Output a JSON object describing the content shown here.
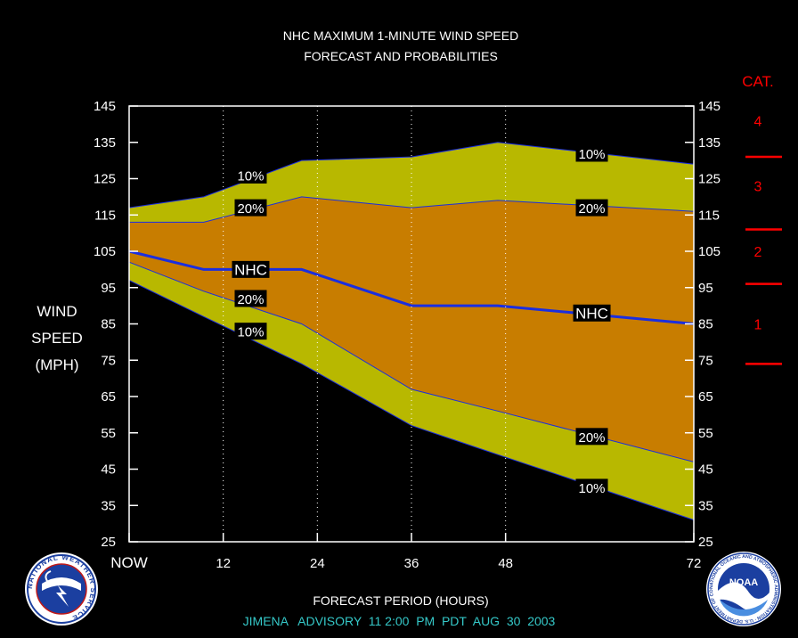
{
  "chart_data": {
    "type": "area",
    "title": "NHC MAXIMUM 1-MINUTE WIND SPEED",
    "subtitle": "FORECAST AND PROBABILITIES",
    "xlabel": "FORECAST PERIOD (HOURS)",
    "ylabel_lines": [
      "WIND",
      "SPEED",
      "(MPH)"
    ],
    "footer": "JIMENA   ADVISORY  11 2:00  PM  PDT  AUG  30  2003",
    "xlim": [
      0,
      72
    ],
    "ylim": [
      25,
      145
    ],
    "x_ticks": [
      {
        "value": 0,
        "label": "NOW"
      },
      {
        "value": 12,
        "label": "12"
      },
      {
        "value": 24,
        "label": "24"
      },
      {
        "value": 36,
        "label": "36"
      },
      {
        "value": 48,
        "label": "48"
      },
      {
        "value": 72,
        "label": "72"
      }
    ],
    "y_ticks": [
      25,
      35,
      45,
      55,
      65,
      75,
      85,
      95,
      105,
      115,
      125,
      135,
      145
    ],
    "grid": "dotted vertical at 12, 24, 36, 48",
    "series": [
      {
        "name": "10%",
        "role": "upper",
        "x": [
          0,
          9.5,
          22,
          36,
          47,
          72
        ],
        "values": [
          117,
          120,
          130,
          131,
          135,
          129
        ]
      },
      {
        "name": "20%",
        "role": "upper",
        "x": [
          0,
          9.5,
          22,
          36,
          47,
          72
        ],
        "values": [
          113,
          113,
          120,
          117,
          119,
          116
        ]
      },
      {
        "name": "NHC",
        "role": "forecast",
        "x": [
          0,
          9.5,
          22,
          36,
          47,
          72
        ],
        "values": [
          105,
          100,
          100,
          90,
          90,
          85
        ]
      },
      {
        "name": "20%",
        "role": "lower",
        "x": [
          0,
          9.5,
          22,
          36,
          47,
          72
        ],
        "values": [
          102,
          94,
          85,
          67,
          61,
          47
        ]
      },
      {
        "name": "10%",
        "role": "lower",
        "x": [
          0,
          9.5,
          22,
          36,
          47,
          72
        ],
        "values": [
          97,
          87,
          74,
          57,
          49,
          31
        ]
      }
    ],
    "series_labels": [
      {
        "text": "10%",
        "x": 15.5,
        "y": 126
      },
      {
        "text": "20%",
        "x": 15.5,
        "y": 117
      },
      {
        "text": "NHC",
        "x": 15.5,
        "y": 100
      },
      {
        "text": "20%",
        "x": 15.5,
        "y": 92
      },
      {
        "text": "10%",
        "x": 15.5,
        "y": 83
      },
      {
        "text": "10%",
        "x": 59,
        "y": 132
      },
      {
        "text": "20%",
        "x": 59,
        "y": 117
      },
      {
        "text": "NHC",
        "x": 59,
        "y": 88
      },
      {
        "text": "20%",
        "x": 59,
        "y": 54
      },
      {
        "text": "10%",
        "x": 59,
        "y": 40
      }
    ],
    "categories": {
      "header": "CAT.",
      "items": [
        {
          "label": "4",
          "y": 141
        },
        {
          "label": "3",
          "y": 123
        },
        {
          "label": "2",
          "y": 105
        },
        {
          "label": "1",
          "y": 85
        }
      ],
      "thresholds": [
        131,
        111,
        96,
        74
      ]
    },
    "colors": {
      "background": "#000000",
      "outer_band": "#b8b800",
      "inner_band": "#c87d00",
      "nhc_line": "#1a2ee0",
      "text": "#ffffff",
      "category": "#ff0000",
      "footer": "#35c8c8"
    }
  },
  "logos": {
    "left": "NATIONAL WEATHER SERVICE",
    "right_center": "NOAA",
    "right_ring": "NATIONAL OCEANIC AND ATMOSPHERIC ADMINISTRATION · U.S. DEPARTMENT OF COMMERCE"
  }
}
